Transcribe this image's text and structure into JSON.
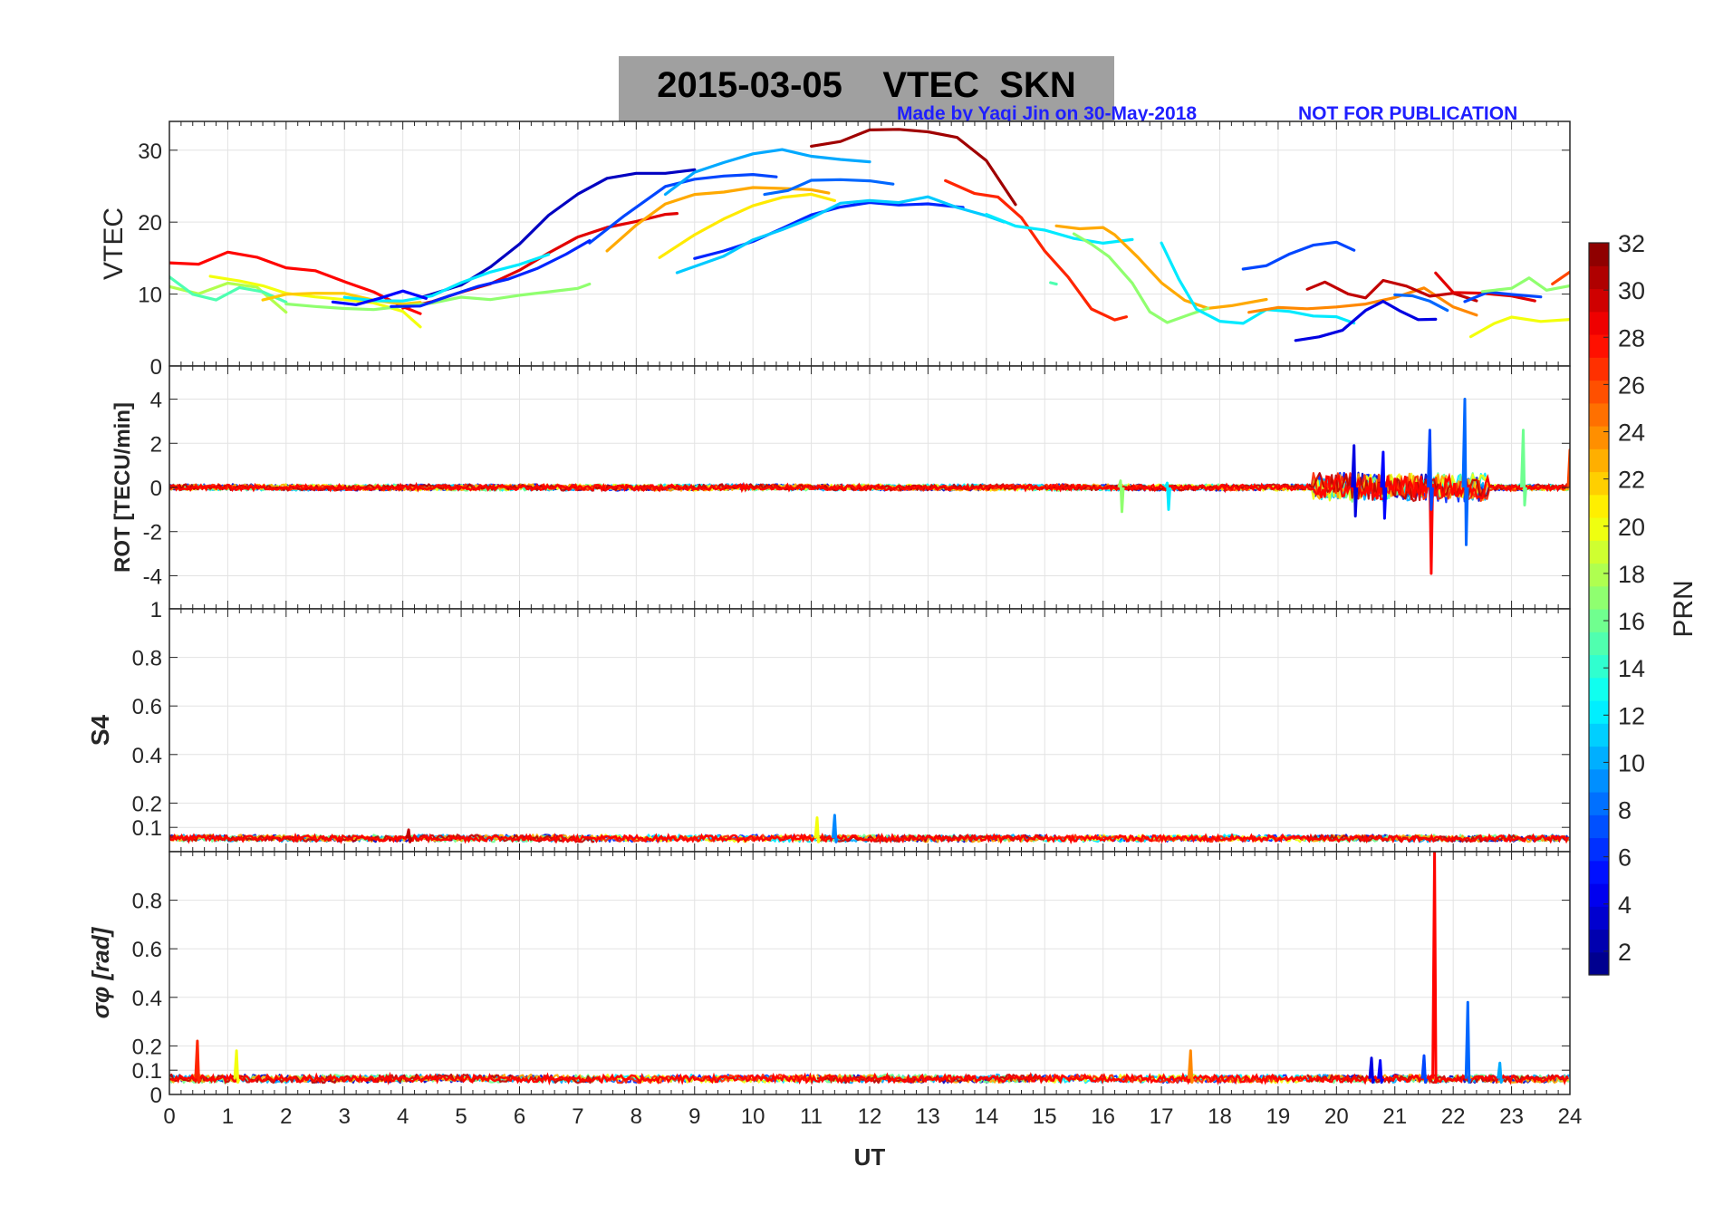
{
  "figure": {
    "date": "2015-03-05",
    "title": "2015-03-05    VTEC  SKN",
    "credit": "Made by Yaqi Jin on 30-May-2018",
    "notice": "NOT FOR PUBLICATION"
  },
  "chart_data": {
    "type": "line",
    "title": "2015-03-05    VTEC  SKN",
    "xlabel": "UT",
    "xlim": [
      0,
      24
    ],
    "xticks": [
      0,
      1,
      2,
      3,
      4,
      5,
      6,
      7,
      8,
      9,
      10,
      11,
      12,
      13,
      14,
      15,
      16,
      17,
      18,
      19,
      20,
      21,
      22,
      23,
      24
    ],
    "grid": true,
    "colorbar": {
      "label": "PRN",
      "range": [
        1,
        32
      ],
      "ticks": [
        2,
        4,
        6,
        8,
        10,
        12,
        14,
        16,
        18,
        20,
        22,
        24,
        26,
        28,
        30,
        32
      ],
      "colormap": "jet"
    },
    "panels": [
      {
        "id": "vtec",
        "ylabel": "VTEC",
        "ylim": [
          0,
          34
        ],
        "yticks": [
          0,
          10,
          20,
          30
        ],
        "series": [
          {
            "prn": 28,
            "x": [
              0,
              0.5,
              1,
              1.5,
              2,
              2.5,
              3,
              3.5,
              4,
              4.3
            ],
            "y": [
              14.3,
              14.2,
              15.8,
              15.0,
              13.6,
              13.2,
              11.8,
              10.2,
              8.2,
              7.2
            ]
          },
          {
            "prn": 29,
            "x": [
              4,
              4.5,
              5,
              5.5,
              6,
              6.5,
              7,
              7.5,
              8,
              8.5,
              8.7
            ],
            "y": [
              8.0,
              9.0,
              10.2,
              11.5,
              13.3,
              15.8,
              18.0,
              19.2,
              20.0,
              21.0,
              21.3
            ]
          },
          {
            "prn": 3,
            "x": [
              4.3,
              5,
              5.5,
              6,
              6.5,
              7,
              7.5,
              8,
              8.5,
              9
            ],
            "y": [
              9.5,
              11.2,
              13.8,
              17.0,
              21.0,
              23.8,
              26.0,
              26.8,
              26.8,
              27.2
            ]
          },
          {
            "prn": 7,
            "x": [
              7.2,
              7.8,
              8.5,
              9,
              9.5,
              10,
              10.4
            ],
            "y": [
              17.2,
              21.0,
              25.0,
              26.0,
              26.4,
              26.5,
              26.3
            ]
          },
          {
            "prn": 10,
            "x": [
              8.5,
              9,
              9.5,
              10,
              10.5,
              11,
              11.5,
              12
            ],
            "y": [
              23.8,
              27.0,
              28.3,
              29.4,
              30.0,
              29.2,
              28.7,
              28.3
            ]
          },
          {
            "prn": 31,
            "x": [
              11,
              11.5,
              12,
              12.5,
              13,
              13.5,
              14,
              14.5
            ],
            "y": [
              30.5,
              31.3,
              32.8,
              33.0,
              32.5,
              31.8,
              28.5,
              22.5
            ]
          },
          {
            "prn": 27,
            "x": [
              13.3,
              13.8,
              14.2,
              14.6,
              15,
              15.4,
              15.8,
              16.2,
              16.4
            ],
            "y": [
              25.8,
              24.0,
              23.5,
              20.5,
              16.0,
              12.5,
              8.0,
              6.5,
              6.8
            ]
          },
          {
            "prn": 21,
            "x": [
              8.4,
              9,
              9.5,
              10,
              10.5,
              11,
              11.4
            ],
            "y": [
              15.2,
              18.3,
              20.5,
              22.3,
              23.5,
              23.8,
              23.0
            ]
          },
          {
            "prn": 23,
            "x": [
              7.5,
              8,
              8.5,
              9,
              9.5,
              10,
              10.5,
              11,
              11.3
            ],
            "y": [
              16.0,
              19.5,
              22.5,
              23.8,
              24.3,
              24.8,
              24.7,
              24.5,
              24.0
            ]
          },
          {
            "prn": 6,
            "x": [
              9,
              9.5,
              10,
              10.5,
              11,
              11.5,
              12,
              12.5,
              13,
              13.6
            ],
            "y": [
              15.0,
              16.0,
              17.2,
              19.2,
              21.0,
              22.0,
              22.7,
              22.5,
              22.5,
              22.0
            ]
          },
          {
            "prn": 11,
            "x": [
              8.7,
              9.5,
              10,
              10.5,
              11,
              11.5,
              12,
              12.5,
              13,
              13.5,
              14,
              14.3
            ],
            "y": [
              13.0,
              15.2,
              17.5,
              19.0,
              20.5,
              22.5,
              23.0,
              22.8,
              23.5,
              22.0,
              20.8,
              20.0
            ]
          },
          {
            "prn": 8,
            "x": [
              10.2,
              10.6,
              11,
              11.5,
              12,
              12.4
            ],
            "y": [
              23.8,
              24.5,
              25.7,
              26.0,
              25.8,
              25.3
            ]
          },
          {
            "prn": 12,
            "x": [
              14,
              14.5,
              15,
              15.5,
              16,
              16.5
            ],
            "y": [
              21.0,
              19.5,
              18.8,
              17.8,
              17.0,
              17.6
            ]
          },
          {
            "prn": 23,
            "x": [
              15.2,
              15.6,
              16,
              16.2,
              16.6,
              17,
              17.4,
              17.8,
              18.2,
              18.8
            ],
            "y": [
              19.5,
              19.2,
              19.3,
              18.2,
              15.0,
              11.5,
              9.0,
              8.0,
              8.3,
              9.3
            ]
          },
          {
            "prn": 17,
            "x": [
              15.5,
              15.8,
              16.1,
              16.5,
              16.8,
              17.1,
              17.5,
              17.8
            ],
            "y": [
              18.5,
              17.0,
              15.2,
              11.5,
              7.5,
              6.0,
              7.2,
              8.0
            ]
          },
          {
            "prn": 12,
            "x": [
              17,
              17.3,
              17.6,
              18,
              18.4,
              18.8,
              19.2,
              19.6,
              20,
              20.3
            ],
            "y": [
              17.0,
              12.0,
              8.0,
              6.2,
              6.0,
              7.8,
              7.6,
              7.0,
              6.8,
              6.0
            ]
          },
          {
            "prn": 24,
            "x": [
              18.5,
              19,
              19.5,
              20,
              20.5,
              21,
              21.5,
              22,
              22.4
            ],
            "y": [
              7.5,
              8.2,
              8.0,
              8.3,
              8.6,
              9.4,
              10.8,
              8.2,
              7.0
            ]
          },
          {
            "prn": 7,
            "x": [
              18.4,
              18.8,
              19.2,
              19.6,
              20,
              20.3
            ],
            "y": [
              13.4,
              14.0,
              15.6,
              16.8,
              17.3,
              16.0
            ]
          },
          {
            "prn": 30,
            "x": [
              19.5,
              19.8,
              20.2,
              20.5,
              20.8,
              21.2,
              21.6,
              22,
              22.4
            ],
            "y": [
              10.7,
              11.8,
              10.0,
              9.5,
              12.0,
              11.2,
              9.8,
              10.2,
              9.0
            ]
          },
          {
            "prn": 4,
            "x": [
              19.3,
              19.7,
              20.1,
              20.5,
              20.8,
              21.1,
              21.4,
              21.7
            ],
            "y": [
              3.5,
              4.0,
              5.0,
              7.8,
              9.0,
              7.5,
              6.5,
              6.6
            ]
          },
          {
            "prn": 8,
            "x": [
              21,
              21.3,
              21.6,
              21.9
            ],
            "y": [
              9.8,
              9.8,
              8.9,
              7.8
            ]
          },
          {
            "prn": 29,
            "x": [
              21.7,
              22,
              22.5,
              23,
              23.4
            ],
            "y": [
              13.0,
              10.2,
              10.0,
              9.8,
              9.0
            ]
          },
          {
            "prn": 7,
            "x": [
              22.2,
              22.6,
              23,
              23.5
            ],
            "y": [
              9.0,
              10.2,
              10.0,
              9.6
            ]
          },
          {
            "prn": 17,
            "x": [
              22.5,
              23,
              23.3,
              23.6,
              24
            ],
            "y": [
              10.3,
              10.8,
              12.2,
              10.5,
              11.2
            ]
          },
          {
            "prn": 26,
            "x": [
              23.7,
              24
            ],
            "y": [
              11.5,
              13.0
            ]
          },
          {
            "prn": 20,
            "x": [
              22.3,
              22.7,
              23,
              23.5,
              24
            ],
            "y": [
              4.2,
              6.0,
              6.8,
              6.2,
              6.5
            ]
          },
          {
            "prn": 18,
            "x": [
              0,
              0.5,
              1,
              1.5,
              2
            ],
            "y": [
              11.0,
              10.0,
              11.5,
              11.0,
              7.5
            ]
          },
          {
            "prn": 20,
            "x": [
              0.7,
              1.2,
              1.6,
              2,
              2.5,
              3,
              3.5,
              4,
              4.3
            ],
            "y": [
              12.5,
              11.8,
              11.2,
              10.0,
              9.5,
              9.2,
              8.8,
              7.5,
              5.5
            ]
          },
          {
            "prn": 15,
            "x": [
              0,
              0.4,
              0.8,
              1.2,
              1.6,
              2
            ],
            "y": [
              12.5,
              10.0,
              9.2,
              10.8,
              10.2,
              9.0
            ]
          },
          {
            "prn": 22,
            "x": [
              1.6,
              2,
              2.5,
              3,
              3.5,
              4,
              4.3
            ],
            "y": [
              9.2,
              10.0,
              10.2,
              10.0,
              9.2,
              8.5,
              8.8
            ]
          },
          {
            "prn": 17,
            "x": [
              2,
              2.5,
              3,
              3.5,
              4,
              4.5,
              5,
              5.5,
              6,
              6.5,
              7,
              7.2
            ],
            "y": [
              8.5,
              8.2,
              8.0,
              7.8,
              8.2,
              8.8,
              9.5,
              9.2,
              9.8,
              10.3,
              10.9,
              11.3
            ]
          },
          {
            "prn": 12,
            "x": [
              3,
              3.5,
              4,
              4.5,
              5,
              5.5,
              6,
              6.5
            ],
            "y": [
              9.5,
              9.2,
              9.0,
              9.8,
              11.5,
              13.0,
              14.0,
              15.5
            ]
          },
          {
            "prn": 5,
            "x": [
              2.8,
              3.2,
              3.6,
              4,
              4.4
            ],
            "y": [
              8.8,
              8.6,
              9.5,
              10.5,
              9.3
            ]
          },
          {
            "prn": 6,
            "x": [
              3.8,
              4.3,
              4.8,
              5.3,
              5.8,
              6.3,
              6.8,
              7.2
            ],
            "y": [
              8.2,
              8.4,
              9.8,
              11.0,
              12.0,
              13.5,
              15.5,
              17.5
            ]
          },
          {
            "prn": 15,
            "x": [
              15.1,
              15.2
            ],
            "y": [
              11.5,
              11.3
            ]
          }
        ]
      },
      {
        "id": "rot",
        "ylabel": "ROT [TECU/min]",
        "ylim": [
          -5.5,
          5.5
        ],
        "yticks": [
          -4,
          -2,
          0,
          2,
          4
        ],
        "noise": {
          "base_amplitude": 0.12,
          "active_window": [
            19.6,
            22.6
          ],
          "active_amplitude": 0.55
        },
        "spikes": [
          {
            "prn": 8,
            "x": 22.2,
            "low": -2.6,
            "high": 4.0
          },
          {
            "prn": 28,
            "x": 21.6,
            "low": -3.9,
            "high": 0.5
          },
          {
            "prn": 7,
            "x": 21.6,
            "low": -1.0,
            "high": 2.6
          },
          {
            "prn": 16,
            "x": 23.2,
            "low": -0.8,
            "high": 2.6
          },
          {
            "prn": 4,
            "x": 20.3,
            "low": -1.3,
            "high": 1.9
          },
          {
            "prn": 5,
            "x": 20.8,
            "low": -1.4,
            "high": 1.6
          },
          {
            "prn": 26,
            "x": 24.0,
            "low": -0.3,
            "high": 1.7
          },
          {
            "prn": 17,
            "x": 16.3,
            "low": -1.1,
            "high": 0.3
          },
          {
            "prn": 12,
            "x": 17.1,
            "low": -1.0,
            "high": 0.2
          }
        ]
      },
      {
        "id": "s4",
        "ylabel": "S4",
        "ylim": [
          0,
          1
        ],
        "yticks": [
          0.1,
          0.2,
          0.4,
          0.6,
          0.8,
          1
        ],
        "baseline": 0.055,
        "noise": {
          "base_amplitude": 0.012
        },
        "spikes": [
          {
            "prn": 20,
            "x": 11.1,
            "low": 0.04,
            "high": 0.14
          },
          {
            "prn": 9,
            "x": 11.4,
            "low": 0.04,
            "high": 0.15
          },
          {
            "prn": 30,
            "x": 4.1,
            "low": 0.04,
            "high": 0.09
          }
        ]
      },
      {
        "id": "sigma_phi",
        "ylabel": "σφ [rad]",
        "ylim": [
          0,
          1
        ],
        "yticks": [
          0,
          0.1,
          0.2,
          0.4,
          0.6,
          0.8
        ],
        "baseline": 0.065,
        "noise": {
          "base_amplitude": 0.014
        },
        "spikes": [
          {
            "prn": 28,
            "x": 21.68,
            "low": 0.05,
            "high": 1.0
          },
          {
            "prn": 8,
            "x": 22.25,
            "low": 0.05,
            "high": 0.38
          },
          {
            "prn": 27,
            "x": 0.48,
            "low": 0.05,
            "high": 0.22
          },
          {
            "prn": 20,
            "x": 1.15,
            "low": 0.05,
            "high": 0.18
          },
          {
            "prn": 24,
            "x": 17.5,
            "low": 0.05,
            "high": 0.18
          },
          {
            "prn": 4,
            "x": 20.6,
            "low": 0.05,
            "high": 0.15
          },
          {
            "prn": 5,
            "x": 20.75,
            "low": 0.05,
            "high": 0.14
          },
          {
            "prn": 7,
            "x": 21.5,
            "low": 0.05,
            "high": 0.16
          },
          {
            "prn": 10,
            "x": 22.8,
            "low": 0.05,
            "high": 0.13
          }
        ]
      }
    ]
  }
}
